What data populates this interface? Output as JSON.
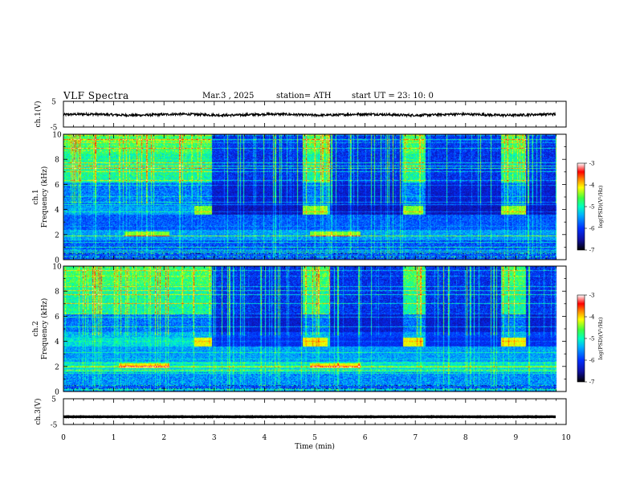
{
  "header": {
    "title": "VLF  Spectra",
    "date": "Mar.3  , 2025",
    "station": "station= ATH",
    "start": "start  UT  =   23: 10: 0"
  },
  "chart_data": {
    "type": "heatmap",
    "x_axis": {
      "label": "Time  (min)",
      "range": [
        0,
        10
      ],
      "ticks": [
        0,
        1,
        2,
        3,
        4,
        5,
        6,
        7,
        8,
        9,
        10
      ]
    },
    "panels": [
      {
        "kind": "line",
        "ylabel": "ch.1(V)",
        "ylim": [
          -5,
          5
        ],
        "yticks": [
          "5",
          "-5"
        ],
        "description_level": -0.2
      },
      {
        "kind": "spectrogram",
        "ylabel_top": "ch.1",
        "ylabel": "Frequency  (kHz)",
        "ylim": [
          0,
          10
        ],
        "yticks": [
          0,
          2,
          4,
          6,
          8,
          10
        ],
        "data_end_min": 9.8,
        "colorbar": {
          "label": "log(PSD)(V²/Hz)",
          "range": [
            -7,
            -3
          ],
          "ticks": [
            -3,
            -4,
            -5,
            -6,
            -7
          ]
        },
        "quiet_intervals_min": [
          [
            2.95,
            4.75
          ],
          [
            5.3,
            6.75
          ],
          [
            7.2,
            8.7
          ],
          [
            9.2,
            9.8
          ]
        ],
        "band_4khz_intervals_min": [
          [
            2.6,
            2.95
          ],
          [
            4.75,
            5.25
          ],
          [
            6.75,
            7.15
          ],
          [
            8.7,
            9.2
          ]
        ],
        "band_2khz_intervals_min": [
          [
            1.2,
            2.1
          ],
          [
            4.9,
            5.9
          ]
        ]
      },
      {
        "kind": "spectrogram",
        "ylabel_top": "ch.2",
        "ylabel": "Frequency  (kHz)",
        "ylim": [
          0,
          10
        ],
        "yticks": [
          0,
          2,
          4,
          6,
          8,
          10
        ],
        "data_end_min": 9.8,
        "colorbar": {
          "label": "log(PSD)(V²/Hz)",
          "range": [
            -7,
            -3
          ],
          "ticks": [
            -3,
            -4,
            -5,
            -6,
            -7
          ]
        },
        "quiet_intervals_min": [
          [
            2.95,
            4.75
          ],
          [
            5.3,
            6.75
          ],
          [
            7.2,
            8.7
          ],
          [
            9.2,
            9.8
          ]
        ],
        "band_4khz_intervals_min": [
          [
            2.6,
            2.95
          ],
          [
            4.75,
            5.25
          ],
          [
            6.75,
            7.15
          ],
          [
            8.7,
            9.2
          ]
        ],
        "band_2khz_intervals_min": [
          [
            1.1,
            2.1
          ],
          [
            4.9,
            5.9
          ]
        ]
      },
      {
        "kind": "line",
        "ylabel": "ch.3(V)",
        "ylim": [
          -5,
          5
        ],
        "yticks": [
          "5",
          "-5"
        ],
        "description_level": -2.0
      }
    ],
    "colormap": [
      "#000000",
      "#1010a0",
      "#0030ff",
      "#00b0ff",
      "#00ffc0",
      "#40ff40",
      "#ffff00",
      "#ff8000",
      "#ff0000",
      "#ffffff"
    ]
  }
}
